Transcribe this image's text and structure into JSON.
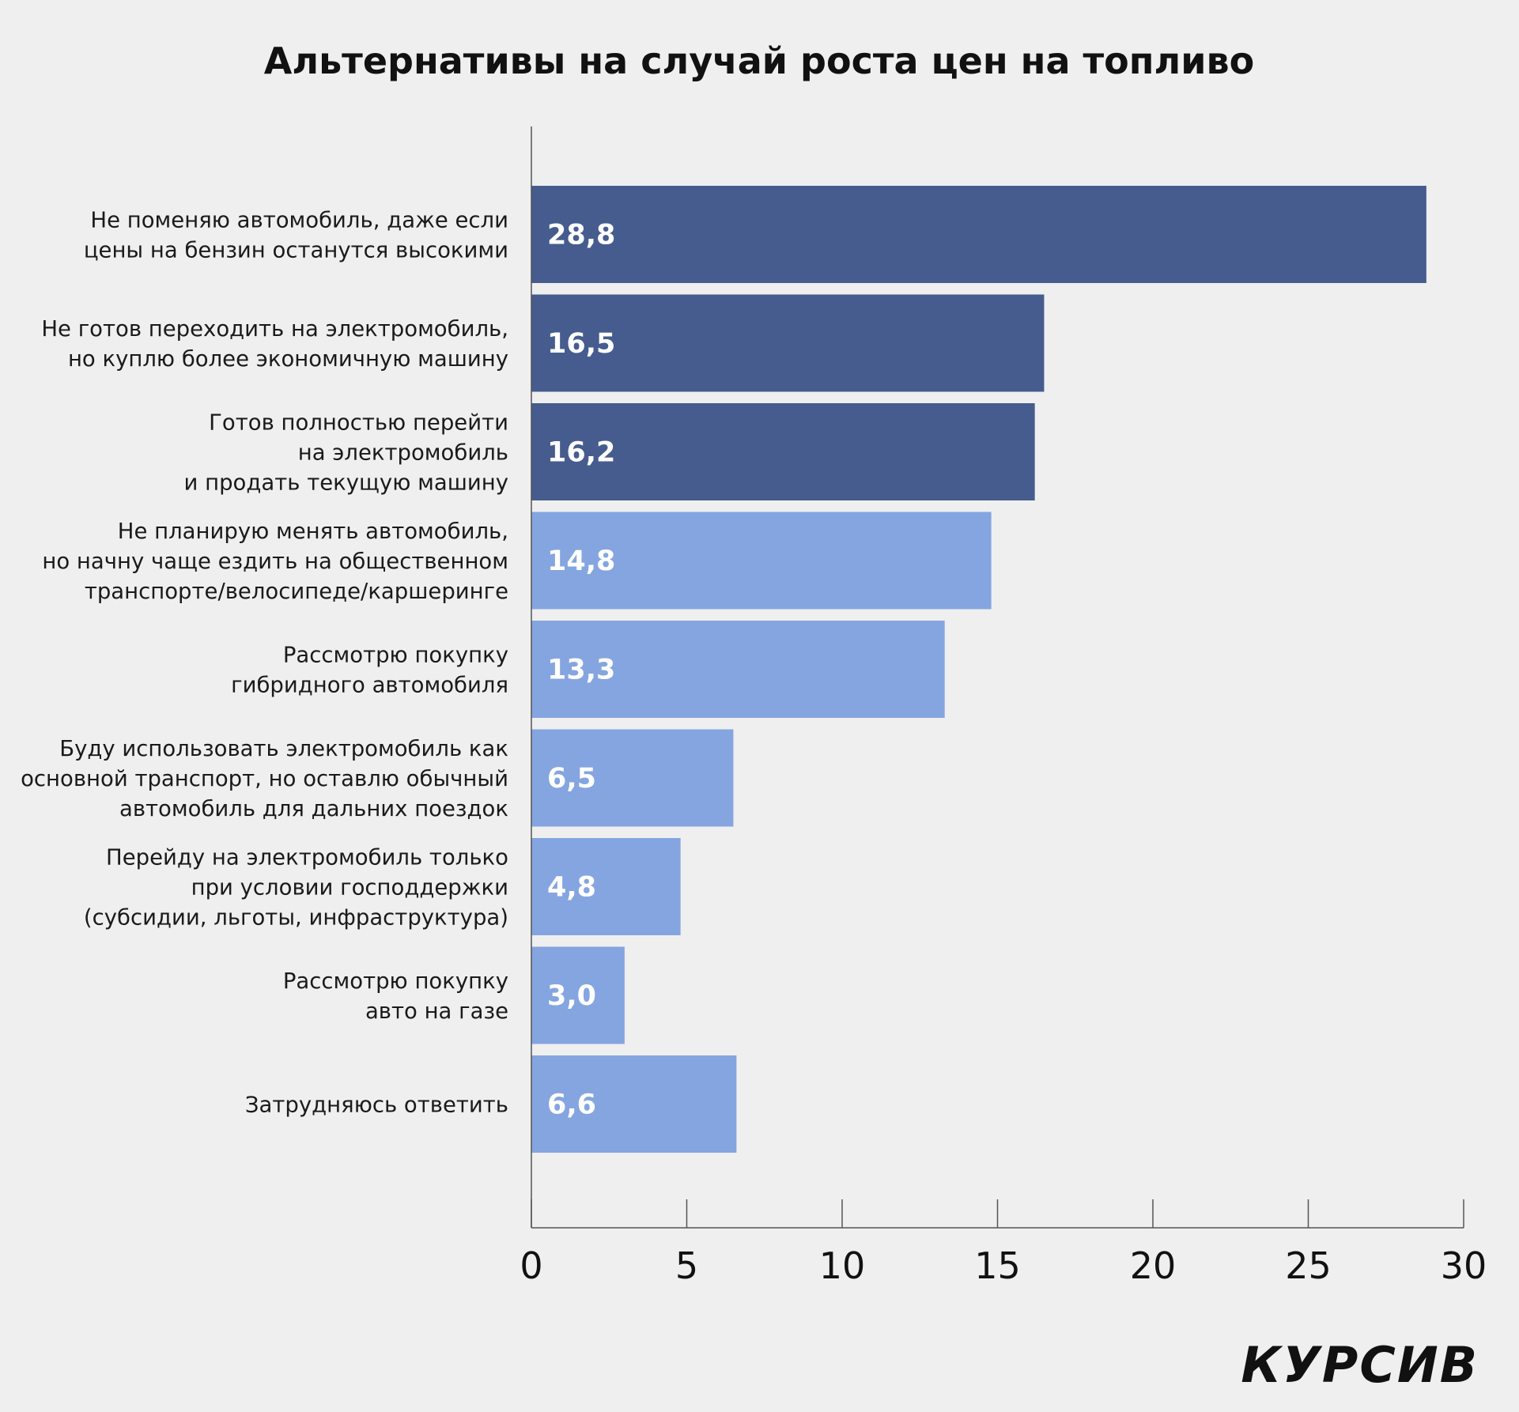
{
  "chart_data": {
    "type": "bar",
    "orientation": "horizontal",
    "title": "Альтернативы на случай роста цен на топливо",
    "categories": [
      [
        "Не поменяю автомобиль, даже если",
        "цены на бензин останутся высокими"
      ],
      [
        "Не готов переходить на электромобиль,",
        "но куплю более экономичную машину"
      ],
      [
        "Готов полностью перейти",
        "на электромобиль",
        "и продать текущую машину"
      ],
      [
        "Не планирую менять автомобиль,",
        "но начну чаще ездить на общественном",
        "транспорте/велосипеде/каршеринге"
      ],
      [
        "Рассмотрю покупку",
        "гибридного автомобиля"
      ],
      [
        "Буду использовать электромобиль как",
        "основной транспорт, но оставлю обычный",
        "автомобиль для дальних поездок"
      ],
      [
        "Перейду на электромобиль только",
        "при условии господдержки",
        "(субсидии, льготы, инфраструктура)"
      ],
      [
        "Рассмотрю покупку",
        "авто на газе"
      ],
      [
        "Затрудняюсь ответить"
      ]
    ],
    "values": [
      28.8,
      16.5,
      16.2,
      14.8,
      13.3,
      6.5,
      4.8,
      3.0,
      6.6
    ],
    "value_labels": [
      "28,8",
      "16,5",
      "16,2",
      "14,8",
      "13,3",
      "6,5",
      "4,8",
      "3,0",
      "6,6"
    ],
    "bar_colors": [
      "#465c8e",
      "#465c8e",
      "#465c8e",
      "#85a5e0",
      "#85a5e0",
      "#85a5e0",
      "#85a5e0",
      "#85a5e0",
      "#85a5e0"
    ],
    "xlim": [
      0,
      30
    ],
    "xticks": [
      "0",
      "5",
      "10",
      "15",
      "20",
      "25",
      "30"
    ],
    "xtick_values": [
      0,
      5,
      10,
      15,
      20,
      25,
      30
    ],
    "grid": false,
    "legend": "none"
  },
  "branding": {
    "logo_text": "КУРСИВ"
  },
  "colors": {
    "background": "#efefef",
    "dark_bar": "#465c8e",
    "light_bar": "#85a5e0",
    "axis": "#555555",
    "text": "#111111"
  }
}
